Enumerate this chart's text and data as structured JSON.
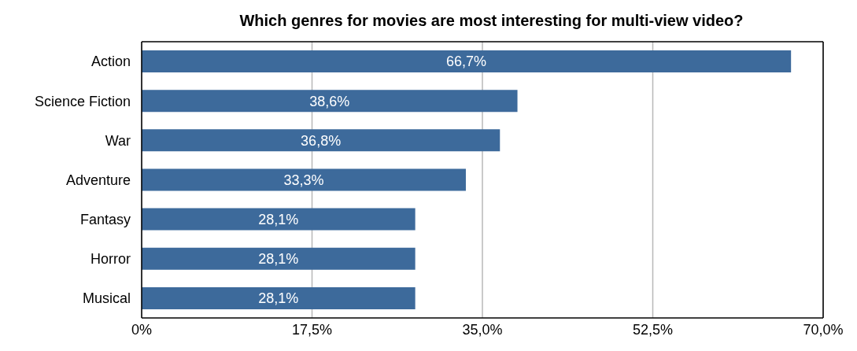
{
  "chart_data": {
    "type": "bar",
    "orientation": "horizontal",
    "title": "Which genres for movies are most interesting for multi-view video?",
    "categories": [
      "Action",
      "Science Fiction",
      "War",
      "Adventure",
      "Fantasy",
      "Horror",
      "Musical"
    ],
    "values": [
      66.7,
      38.6,
      36.8,
      33.3,
      28.1,
      28.1,
      28.1
    ],
    "value_labels": [
      "66,7%",
      "38,6%",
      "36,8%",
      "33,3%",
      "28,1%",
      "28,1%",
      "28,1%"
    ],
    "color": "#3d6a9b",
    "xlim": [
      0,
      70
    ],
    "xticks": [
      {
        "value": 0,
        "label": "0%"
      },
      {
        "value": 17.5,
        "label": "17,5%"
      },
      {
        "value": 35,
        "label": "35,0%"
      },
      {
        "value": 52.5,
        "label": "52,5%"
      },
      {
        "value": 70,
        "label": "70,0%"
      }
    ],
    "grid": "x",
    "legend": false
  }
}
